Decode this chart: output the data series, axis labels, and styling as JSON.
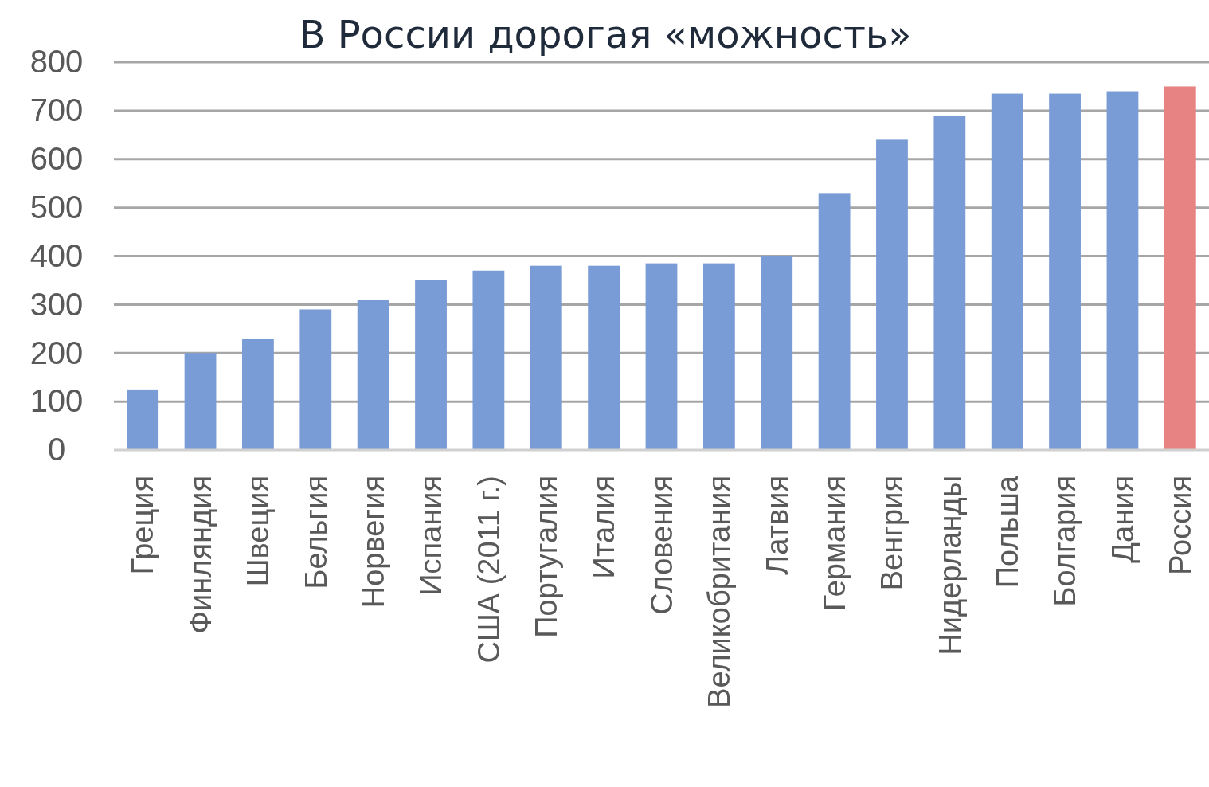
{
  "chart_data": {
    "type": "bar",
    "title": "В России дорогая «можность»",
    "categories": [
      "Греция",
      "Финляндия",
      "Швеция",
      "Бельгия",
      "Норвегия",
      "Испания",
      "США (2011 г.)",
      "Португалия",
      "Италия",
      "Словения",
      "Великобритания",
      "Латвия",
      "Германия",
      "Венгрия",
      "Нидерланды",
      "Польша",
      "Болгария",
      "Дания",
      "Россия"
    ],
    "values": [
      125,
      200,
      230,
      290,
      310,
      350,
      370,
      380,
      380,
      385,
      385,
      400,
      530,
      640,
      690,
      735,
      735,
      740,
      750
    ],
    "colors": [
      "#7a9cd6",
      "#7a9cd6",
      "#7a9cd6",
      "#7a9cd6",
      "#7a9cd6",
      "#7a9cd6",
      "#7a9cd6",
      "#7a9cd6",
      "#7a9cd6",
      "#7a9cd6",
      "#7a9cd6",
      "#7a9cd6",
      "#7a9cd6",
      "#7a9cd6",
      "#7a9cd6",
      "#7a9cd6",
      "#7a9cd6",
      "#7a9cd6",
      "#e88383"
    ],
    "ylim": [
      0,
      800
    ],
    "yticks": [
      0,
      100,
      200,
      300,
      400,
      500,
      600,
      700,
      800
    ],
    "grid": "y"
  }
}
